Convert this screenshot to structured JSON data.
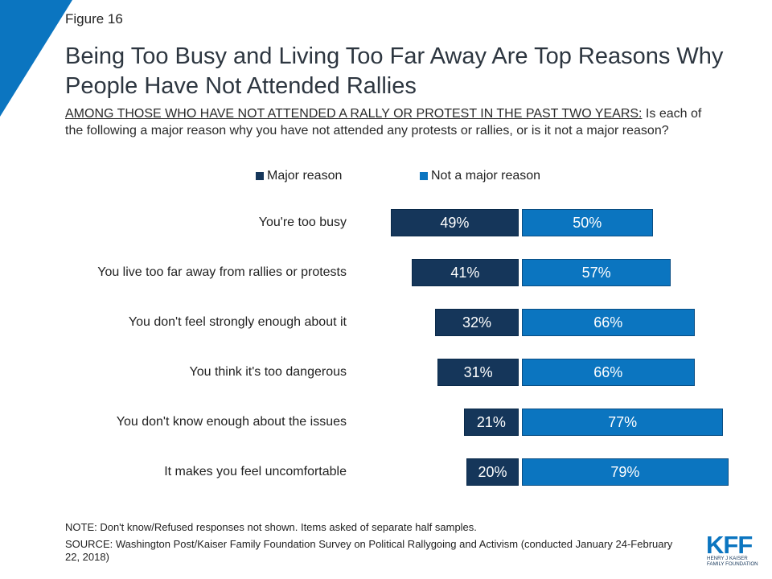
{
  "figure_label": "Figure 16",
  "title": "Being Too Busy and Living Too Far Away Are Top Reasons Why People Have Not Attended Rallies",
  "subtitle_underlined": "AMONG THOSE WHO HAVE NOT ATTENDED A RALLY OR PROTEST IN THE PAST TWO YEARS:",
  "subtitle_rest": " Is each of the following a major reason why you have not attended any protests or rallies, or is it not a major reason?",
  "note": "NOTE: Don't know/Refused responses not shown. Items asked of separate half samples.",
  "source": "SOURCE: Washington Post/Kaiser Family Foundation Survey on Political Rallygoing and Activism (conducted January 24-February 22, 2018)",
  "logo": {
    "text": "KFF",
    "line1": "HENRY J KAISER",
    "line2": "FAMILY FOUNDATION"
  },
  "colors": {
    "major": "#15365a",
    "not_major": "#0b75c0",
    "accent": "#0b75c0"
  },
  "chart_data": {
    "type": "bar",
    "orientation": "horizontal",
    "stacked": "diverging",
    "categories": [
      "You're too busy",
      "You live too far away from rallies or protests",
      "You don't feel strongly enough about it",
      "You think it's too dangerous",
      "You don't know enough about the issues",
      "It makes you feel uncomfortable"
    ],
    "series": [
      {
        "name": "Major reason",
        "values": [
          49,
          41,
          32,
          31,
          21,
          20
        ],
        "labels": [
          "49%",
          "41%",
          "32%",
          "31%",
          "21%",
          "20%"
        ],
        "color": "#15365a"
      },
      {
        "name": "Not a major reason",
        "values": [
          50,
          57,
          66,
          66,
          77,
          79
        ],
        "labels": [
          "50%",
          "57%",
          "66%",
          "66%",
          "77%",
          "79%"
        ],
        "color": "#0b75c0"
      }
    ],
    "legend": "top",
    "grid": false
  }
}
